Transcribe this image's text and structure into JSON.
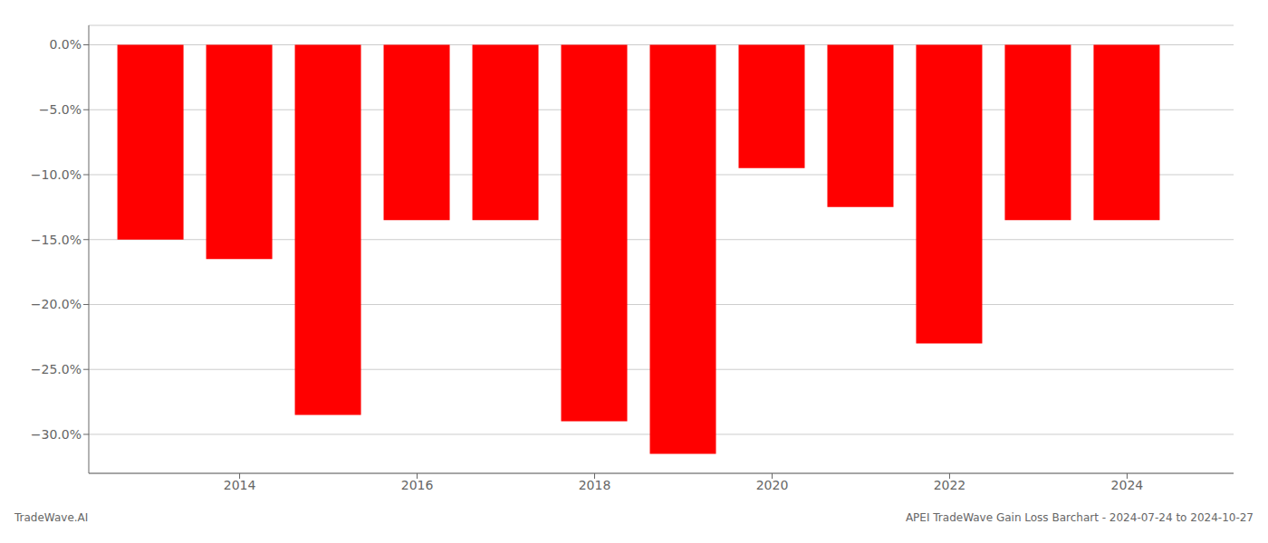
{
  "chart_data": {
    "type": "bar",
    "x": [
      2013,
      2014,
      2015,
      2016,
      2017,
      2018,
      2019,
      2020,
      2021,
      2022,
      2023,
      2024
    ],
    "values": [
      -15.0,
      -16.5,
      -28.5,
      -13.5,
      -13.5,
      -29.0,
      -31.5,
      -9.5,
      -12.5,
      -23.0,
      -13.5,
      -13.5
    ],
    "color": "#ff0000",
    "xlim": [
      2012.3,
      2025.2
    ],
    "xticks": [
      2014,
      2016,
      2018,
      2020,
      2022,
      2024
    ],
    "ylim": [
      -33,
      1.5
    ],
    "yticks": [
      {
        "value": 0.0,
        "label": "0.0%"
      },
      {
        "value": -5.0,
        "label": "−5.0%"
      },
      {
        "value": -10.0,
        "label": "−10.0%"
      },
      {
        "value": -15.0,
        "label": "−15.0%"
      },
      {
        "value": -20.0,
        "label": "−20.0%"
      },
      {
        "value": -25.0,
        "label": "−25.0%"
      },
      {
        "value": -30.0,
        "label": "−30.0%"
      }
    ],
    "grid": true,
    "annotations": [
      "TradeWave.AI",
      "APEI TradeWave Gain Loss Barchart - 2024-07-24 to 2024-10-27"
    ]
  }
}
